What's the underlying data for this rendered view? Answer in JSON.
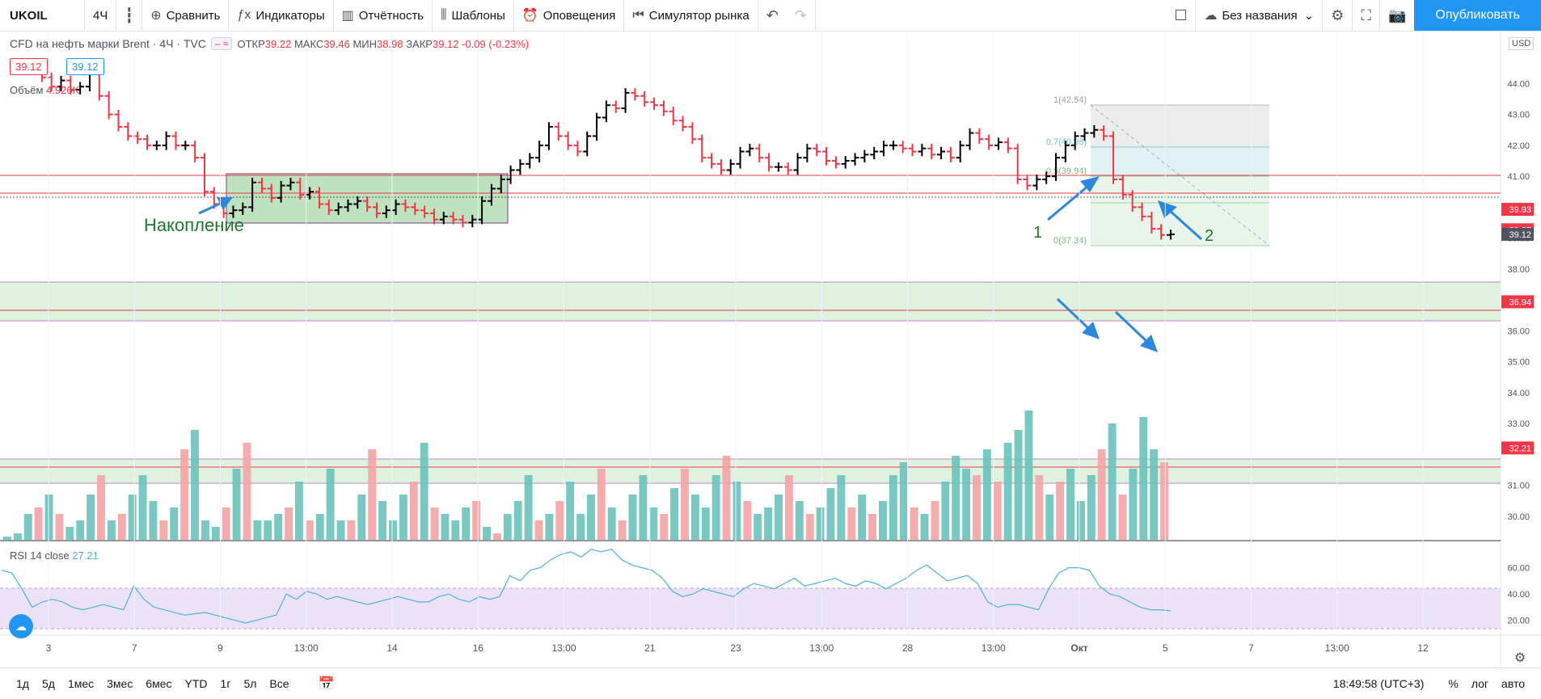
{
  "toolbar": {
    "symbol": "UKOIL",
    "interval": "4Ч",
    "compare": "Сравнить",
    "indicators": "Индикаторы",
    "reports": "Отчётность",
    "templates": "Шаблоны",
    "alerts": "Оповещения",
    "replay": "Симулятор рынка",
    "layout_name": "Без названия",
    "publish": "Опубликовать"
  },
  "legend": {
    "title": "CFD на нефть марки Brent · 4Ч · TVC",
    "open_label": "ОТКР",
    "open": "39.22",
    "high_label": "МАКС",
    "high": "39.46",
    "low_label": "МИН",
    "low": "38.98",
    "close_label": "ЗАКР",
    "close": "39.12",
    "change": "-0.09 (-0.23%)",
    "sell_price": "39.12",
    "buy_price": "39.12",
    "volume_label": "Объём",
    "volume_value": "4.926K",
    "rsi_label": "RSI 14 close",
    "rsi_value": "27.21",
    "currency": "USD"
  },
  "annotations": {
    "accumulation": "Накопление",
    "arrow1": "1",
    "arrow2": "2"
  },
  "fib": [
    "1(42.54)",
    "0.7(40.98)",
    "0.5(39.94)",
    "0(37.34)"
  ],
  "price_axis": [
    "44.00",
    "43.00",
    "42.00",
    "41.00",
    "39.00",
    "38.00",
    "37.00",
    "36.00",
    "35.00",
    "34.00",
    "33.00",
    "31.00",
    "30.00"
  ],
  "price_badges": [
    {
      "label": "39.93",
      "color": "#f23645"
    },
    {
      "label": "39.27",
      "color": "#f23645"
    },
    {
      "label": "39.12",
      "color": "#50535e"
    },
    {
      "label": "36.94",
      "color": "#f23645"
    },
    {
      "label": "32.21",
      "color": "#f23645"
    }
  ],
  "rsi_axis": [
    "60.00",
    "40.00",
    "20.00"
  ],
  "time_axis": [
    "3",
    "7",
    "9",
    "13:00",
    "14",
    "16",
    "13:00",
    "21",
    "23",
    "13:00",
    "28",
    "13:00",
    "Окт",
    "5",
    "7",
    "13:00",
    "12"
  ],
  "bottom": {
    "ranges": [
      "1д",
      "5д",
      "1мес",
      "3мес",
      "6мес",
      "YTD",
      "1г",
      "5л",
      "Все"
    ],
    "clock": "18:49:58 (UTC+3)",
    "percent": "%",
    "log": "лог",
    "auto": "авто"
  },
  "colors": {
    "up": "#000000",
    "down": "#f23645",
    "vol_up": "#68c3bb",
    "vol_down": "#f5a3a5",
    "accent": "#2196f3",
    "rsi": "#4bb3d6"
  },
  "chart_data": {
    "type": "bar",
    "price_series": [
      44.6,
      44.2,
      43.9,
      44.1,
      43.8,
      43.9,
      44.3,
      43.6,
      43.0,
      42.6,
      42.3,
      42.2,
      42.0,
      42.0,
      42.3,
      42.0,
      42.0,
      41.6,
      40.5,
      40.1,
      39.8,
      39.9,
      40.0,
      40.8,
      40.6,
      40.3,
      40.7,
      40.8,
      40.4,
      40.5,
      40.1,
      39.9,
      40.0,
      40.1,
      40.2,
      40.0,
      39.8,
      39.9,
      40.1,
      40.0,
      39.9,
      39.8,
      39.6,
      39.7,
      39.6,
      39.5,
      39.6,
      40.2,
      40.6,
      40.9,
      41.2,
      41.4,
      41.6,
      42.0,
      42.6,
      42.3,
      42.0,
      41.8,
      42.3,
      42.9,
      43.3,
      43.2,
      43.7,
      43.6,
      43.4,
      43.3,
      43.1,
      42.8,
      42.6,
      42.2,
      41.6,
      41.4,
      41.2,
      41.4,
      41.8,
      41.9,
      41.6,
      41.3,
      41.3,
      41.2,
      41.6,
      41.9,
      41.8,
      41.5,
      41.4,
      41.5,
      41.6,
      41.7,
      41.8,
      42.0,
      42.0,
      41.9,
      41.8,
      41.9,
      41.7,
      41.8,
      41.6,
      42.0,
      42.4,
      42.2,
      42.0,
      42.1,
      41.9,
      40.9,
      40.7,
      40.9,
      41.0,
      41.6,
      42.0,
      42.3,
      42.4,
      42.5,
      42.3,
      40.9,
      40.4,
      40.0,
      39.7,
      39.3,
      39.1,
      39.12
    ],
    "volume_series": [
      1,
      2,
      8,
      10,
      14,
      8,
      4,
      6,
      14,
      20,
      6,
      8,
      14,
      20,
      12,
      6,
      10,
      28,
      34,
      6,
      4,
      10,
      22,
      30,
      6,
      6,
      8,
      10,
      18,
      6,
      8,
      22,
      6,
      6,
      14,
      28,
      12,
      6,
      14,
      18,
      30,
      10,
      8,
      6,
      10,
      12,
      4,
      2,
      8,
      12,
      20,
      6,
      8,
      12,
      18,
      8,
      14,
      22,
      10,
      6,
      14,
      20,
      10,
      8,
      16,
      22,
      14,
      10,
      20,
      26,
      18,
      12,
      8,
      10,
      14,
      20,
      12,
      8,
      10,
      16,
      20,
      10,
      14,
      8,
      12,
      20,
      24,
      10,
      8,
      12,
      18,
      26,
      22,
      20,
      28,
      18,
      30,
      34,
      40,
      20,
      14,
      18,
      22,
      12,
      20,
      28,
      36,
      14,
      22,
      38,
      28,
      24
    ],
    "rsi_series": [
      58,
      56,
      44,
      30,
      34,
      36,
      34,
      30,
      28,
      30,
      32,
      30,
      28,
      46,
      36,
      30,
      28,
      26,
      24,
      25,
      26,
      24,
      22,
      20,
      18,
      20,
      22,
      24,
      40,
      36,
      42,
      40,
      36,
      38,
      36,
      34,
      32,
      34,
      36,
      38,
      36,
      34,
      34,
      38,
      40,
      36,
      34,
      38,
      36,
      38,
      54,
      50,
      58,
      60,
      66,
      70,
      72,
      68,
      74,
      72,
      74,
      66,
      62,
      60,
      58,
      52,
      42,
      38,
      40,
      44,
      42,
      40,
      38,
      44,
      48,
      46,
      44,
      48,
      52,
      46,
      48,
      50,
      52,
      48,
      46,
      50,
      48,
      44,
      48,
      52,
      58,
      62,
      56,
      50,
      52,
      54,
      48,
      34,
      30,
      32,
      32,
      30,
      28,
      44,
      56,
      60,
      60,
      58,
      46,
      40,
      38,
      34,
      30,
      28,
      28,
      27.21
    ],
    "ylim": [
      29.5,
      45.5
    ],
    "rsi_ylim": [
      10,
      75
    ]
  }
}
